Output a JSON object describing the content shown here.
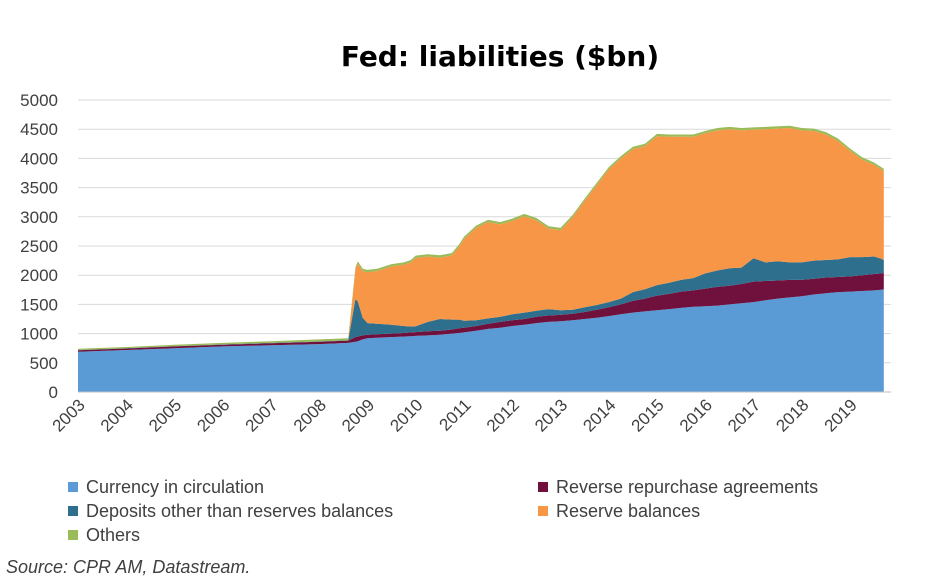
{
  "chart_data": {
    "type": "area",
    "stacked": true,
    "title": "Fed: liabilities ($bn)",
    "ylim": [
      0,
      5000
    ],
    "yticks": [
      "0",
      "500",
      "1000",
      "1500",
      "2000",
      "2500",
      "3000",
      "3500",
      "4000",
      "4500",
      "5000"
    ],
    "xticks": [
      "2003",
      "2004",
      "2005",
      "2006",
      "2007",
      "2008",
      "2009",
      "2010",
      "2011",
      "2012",
      "2013",
      "2014",
      "2015",
      "2016",
      "2017",
      "2018",
      "2019"
    ],
    "xlim": [
      2003,
      2019.7
    ],
    "grid": true,
    "legend_position": "bottom",
    "x": [
      2003.0,
      2004.0,
      2005.0,
      2006.0,
      2007.0,
      2008.0,
      2008.6,
      2008.75,
      2008.8,
      2008.9,
      2009.0,
      2009.2,
      2009.5,
      2009.75,
      2009.9,
      2010.0,
      2010.25,
      2010.5,
      2010.75,
      2010.9,
      2011.0,
      2011.25,
      2011.5,
      2011.75,
      2012.0,
      2012.25,
      2012.5,
      2012.75,
      2013.0,
      2013.25,
      2013.5,
      2013.75,
      2014.0,
      2014.25,
      2014.5,
      2014.75,
      2015.0,
      2015.25,
      2015.5,
      2015.75,
      2016.0,
      2016.25,
      2016.5,
      2016.75,
      2017.0,
      2017.25,
      2017.5,
      2017.75,
      2018.0,
      2018.25,
      2018.5,
      2018.75,
      2019.0,
      2019.25,
      2019.5,
      2019.65,
      2019.7
    ],
    "series": [
      {
        "name": "Currency in circulation",
        "color": "#5b9bd5",
        "values": [
          690,
          720,
          750,
          780,
          800,
          820,
          840,
          860,
          870,
          900,
          920,
          930,
          940,
          950,
          955,
          960,
          970,
          980,
          1000,
          1010,
          1020,
          1050,
          1080,
          1100,
          1130,
          1150,
          1180,
          1200,
          1210,
          1230,
          1250,
          1270,
          1300,
          1330,
          1360,
          1380,
          1400,
          1420,
          1440,
          1460,
          1470,
          1480,
          1500,
          1520,
          1540,
          1570,
          1600,
          1620,
          1640,
          1670,
          1690,
          1710,
          1720,
          1730,
          1740,
          1750,
          1760
        ]
      },
      {
        "name": "Reverse repurchase agreements",
        "color": "#70103c",
        "values": [
          25,
          25,
          30,
          30,
          35,
          40,
          40,
          80,
          80,
          70,
          60,
          60,
          60,
          60,
          65,
          65,
          70,
          70,
          70,
          80,
          80,
          80,
          90,
          100,
          100,
          100,
          110,
          110,
          110,
          110,
          120,
          140,
          150,
          170,
          200,
          220,
          250,
          260,
          280,
          280,
          300,
          320,
          320,
          330,
          350,
          330,
          310,
          300,
          280,
          270,
          270,
          260,
          260,
          270,
          280,
          280,
          280
        ]
      },
      {
        "name": "Deposits other than reserves balances",
        "color": "#2e6f8e",
        "values": [
          5,
          5,
          5,
          5,
          5,
          5,
          5,
          650,
          600,
          300,
          200,
          180,
          150,
          120,
          100,
          100,
          160,
          200,
          170,
          150,
          120,
          100,
          90,
          90,
          100,
          110,
          100,
          110,
          80,
          70,
          80,
          80,
          90,
          100,
          150,
          160,
          180,
          190,
          200,
          210,
          260,
          280,
          300,
          280,
          400,
          320,
          330,
          300,
          300,
          310,
          300,
          300,
          330,
          310,
          300,
          250,
          220
        ]
      },
      {
        "name": "Reserve balances",
        "color": "#f79646",
        "values": [
          0,
          0,
          0,
          0,
          0,
          0,
          0,
          500,
          650,
          800,
          870,
          900,
          1000,
          1050,
          1100,
          1170,
          1120,
          1050,
          1100,
          1250,
          1400,
          1580,
          1650,
          1580,
          1600,
          1650,
          1550,
          1380,
          1370,
          1580,
          1820,
          2050,
          2270,
          2400,
          2450,
          2450,
          2550,
          2500,
          2450,
          2420,
          2400,
          2400,
          2380,
          2350,
          2200,
          2280,
          2270,
          2300,
          2260,
          2220,
          2150,
          2030,
          1820,
          1670,
          1570,
          1530,
          1520
        ]
      },
      {
        "name": "Others",
        "color": "#9bbb59",
        "values": [
          20,
          20,
          25,
          25,
          30,
          35,
          35,
          40,
          40,
          40,
          40,
          40,
          40,
          40,
          40,
          40,
          40,
          40,
          40,
          40,
          40,
          40,
          40,
          40,
          40,
          40,
          40,
          40,
          40,
          40,
          40,
          40,
          40,
          40,
          40,
          40,
          40,
          40,
          40,
          40,
          40,
          40,
          40,
          40,
          40,
          40,
          40,
          40,
          40,
          40,
          40,
          40,
          40,
          40,
          40,
          40,
          40
        ]
      }
    ]
  },
  "source": "Source: CPR AM, Datastream."
}
